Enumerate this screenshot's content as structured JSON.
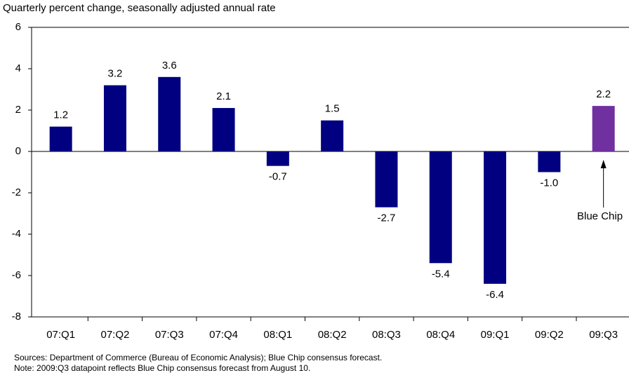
{
  "chart_data": {
    "type": "bar",
    "title": "Quarterly percent change, seasonally adjusted annual rate",
    "categories": [
      "07:Q1",
      "07:Q2",
      "07:Q3",
      "07:Q4",
      "08:Q1",
      "08:Q2",
      "08:Q3",
      "08:Q4",
      "09:Q1",
      "09:Q2",
      "09:Q3"
    ],
    "values": [
      1.2,
      3.2,
      3.6,
      2.1,
      -0.7,
      1.5,
      -2.7,
      -5.4,
      -6.4,
      -1.0,
      2.2
    ],
    "value_labels": [
      "1.2",
      "3.2",
      "3.6",
      "2.1",
      "-0.7",
      "1.5",
      "-2.7",
      "-5.4",
      "-6.4",
      "-1.0",
      "2.2"
    ],
    "colors": [
      "#000080",
      "#000080",
      "#000080",
      "#000080",
      "#000080",
      "#000080",
      "#000080",
      "#000080",
      "#000080",
      "#000080",
      "#7030a0"
    ],
    "ylim": [
      -8,
      6
    ],
    "yticks": [
      -8,
      -6,
      -4,
      -2,
      0,
      2,
      4,
      6
    ],
    "annotation": "Blue Chip",
    "notes": [
      "Sources: Department of Commerce (Bureau of Economic Analysis); Blue Chip consensus forecast.",
      "Note: 2009:Q3 datapoint reflects Blue Chip consensus forecast from August 10."
    ]
  }
}
